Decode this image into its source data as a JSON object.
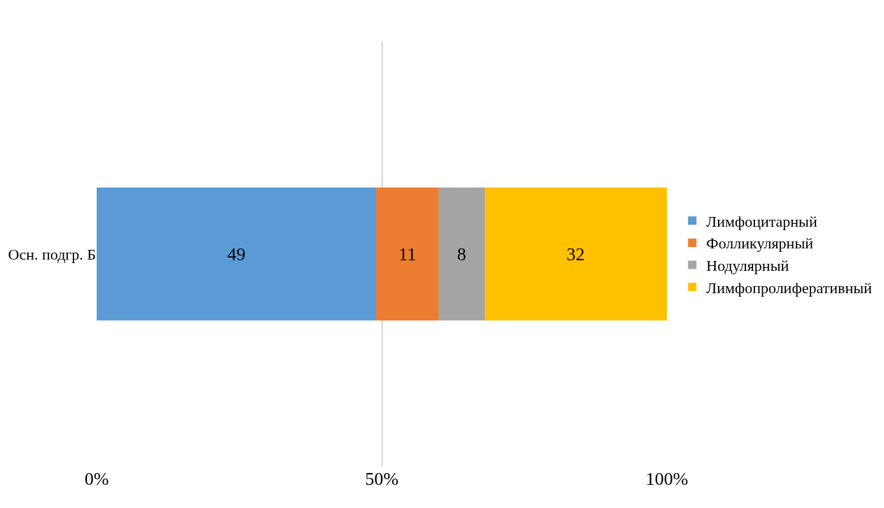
{
  "chart_data": {
    "type": "bar",
    "orientation": "horizontal",
    "stacked": true,
    "categories": [
      "Осн. подгр. Б"
    ],
    "series": [
      {
        "name": "Лимфоцитарный",
        "color": "#5b9bd5",
        "values": [
          49
        ]
      },
      {
        "name": "Фолликулярный",
        "color": "#ed7d31",
        "values": [
          11
        ]
      },
      {
        "name": "Нодулярный",
        "color": "#a5a5a5",
        "values": [
          8
        ]
      },
      {
        "name": "Лимфопролиферативный",
        "color": "#ffc000",
        "values": [
          32
        ]
      }
    ],
    "xlim": [
      0,
      100
    ],
    "xticks": [
      {
        "value": 0,
        "label": "0%"
      },
      {
        "value": 50,
        "label": "50%"
      },
      {
        "value": 100,
        "label": "100%"
      }
    ],
    "data_labels": true,
    "grid": "x",
    "legend": "right"
  }
}
